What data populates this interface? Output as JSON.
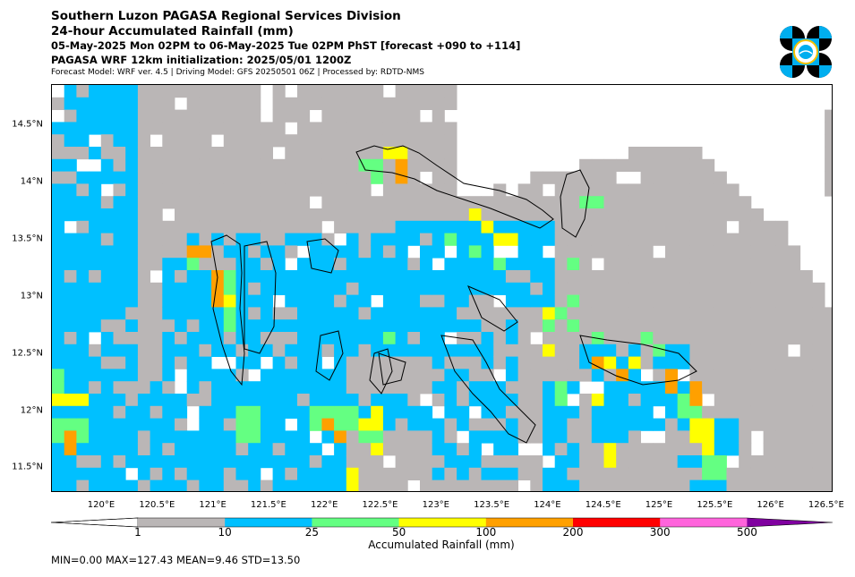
{
  "header": {
    "title": "Southern Luzon PAGASA Regional Services Division",
    "subtitle": "24-hour Accumulated Rainfall (mm)",
    "period": "05-May-2025 Mon 02PM to 06-May-2025 Tue 02PM PhST [forecast +090 to +114]",
    "init": "PAGASA WRF 12km initialization: 2025/05/01 1200Z",
    "model": "Forecast Model: WRF ver. 4.5 | Driving Model: GFS 20250501 06Z | Processed by: RDTD-NMS"
  },
  "map": {
    "lat_ticks": [
      "14.5°N",
      "14°N",
      "13.5°N",
      "13°N",
      "12.5°N",
      "12°N",
      "11.5°N"
    ],
    "lon_ticks": [
      "120°E",
      "120.5°E",
      "121°E",
      "121.5°E",
      "122°E",
      "122.5°E",
      "123°E",
      "123.5°E",
      "124°E",
      "124.5°E",
      "125°E",
      "125.5°E",
      "126°E",
      "126.5°E"
    ],
    "lat_range": [
      11.3,
      14.85
    ],
    "lon_range": [
      119.55,
      126.3
    ]
  },
  "colorbar": {
    "title": "Accumulated Rainfall (mm)",
    "levels": [
      "1",
      "10",
      "25",
      "50",
      "100",
      "200",
      "300",
      "500"
    ],
    "colors": {
      "lt1": "#ffffff",
      "1_10": "#bab6b6",
      "10_25": "#00c0ff",
      "25_50": "#64ff82",
      "50_100": "#ffff00",
      "100_200": "#ffa000",
      "200_300": "#ff0000",
      "300_500": "#ff64dc",
      "gt500": "#8000a0"
    }
  },
  "stats": {
    "text": "MIN=0.00   MAX=127.43   MEAN=9.46   STD=13.50"
  },
  "logo": {
    "icon": "pagasa-logo-icon"
  }
}
